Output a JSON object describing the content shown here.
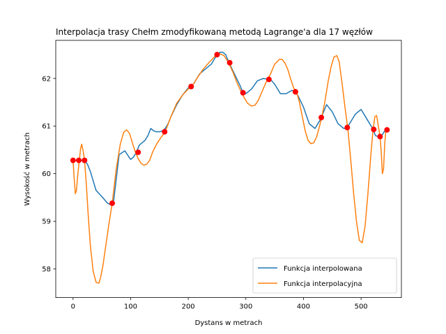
{
  "chart_data": {
    "type": "line",
    "title": "Interpolacja trasy Chełm zmodyfikowaną metodą Lagrange'a dla 17 węzłów",
    "xlabel": "Dystans w metrach",
    "ylabel": "Wysokość w metrach",
    "xlim": [
      -30,
      570
    ],
    "ylim": [
      57.4,
      62.8
    ],
    "xticks": [
      0,
      100,
      200,
      300,
      400,
      500
    ],
    "yticks": [
      58,
      59,
      60,
      61,
      62
    ],
    "grid": false,
    "legend_position": "bottom-right",
    "colors": {
      "interpolated": "#1f77b4",
      "interpolating": "#ff7f0e",
      "nodes": "#ff0000"
    },
    "series": [
      {
        "name": "Funkcja interpolowana",
        "color": "#1f77b4",
        "x": [
          0,
          10,
          20,
          25,
          30,
          35,
          40,
          50,
          60,
          65,
          70,
          80,
          90,
          100,
          105,
          110,
          115,
          120,
          125,
          130,
          135,
          140,
          145,
          150,
          155,
          160,
          165,
          170,
          180,
          190,
          200,
          205,
          210,
          220,
          230,
          240,
          250,
          255,
          260,
          265,
          270,
          280,
          290,
          295,
          300,
          310,
          320,
          330,
          340,
          345,
          350,
          360,
          370,
          380,
          385,
          390,
          400,
          410,
          420,
          430,
          440,
          450,
          460,
          470,
          475,
          480,
          490,
          500,
          510,
          520,
          525,
          530,
          535,
          540,
          545
        ],
        "y": [
          60.28,
          60.28,
          60.28,
          60.2,
          60.05,
          59.85,
          59.65,
          59.52,
          59.38,
          59.35,
          59.38,
          60.4,
          60.48,
          60.3,
          60.35,
          60.45,
          60.6,
          60.65,
          60.7,
          60.8,
          60.95,
          60.9,
          60.88,
          60.88,
          60.9,
          60.95,
          61.05,
          61.2,
          61.45,
          61.65,
          61.8,
          61.83,
          61.9,
          62.1,
          62.2,
          62.3,
          62.5,
          62.55,
          62.55,
          62.5,
          62.35,
          62.1,
          61.85,
          61.7,
          61.68,
          61.78,
          61.95,
          62.0,
          61.98,
          61.95,
          61.88,
          61.68,
          61.68,
          61.75,
          61.72,
          61.65,
          61.4,
          61.05,
          60.95,
          61.15,
          61.45,
          61.3,
          61.05,
          60.95,
          60.95,
          61.05,
          61.25,
          61.35,
          61.15,
          60.95,
          60.8,
          60.78,
          60.78,
          60.88,
          60.92
        ]
      },
      {
        "name": "Funkcja interpolacyjna",
        "color": "#ff7f0e",
        "x": [
          0,
          2,
          4,
          6,
          8,
          11,
          13,
          15,
          18,
          20,
          23,
          26,
          30,
          35,
          40,
          45,
          48,
          52,
          57,
          62,
          68,
          75,
          82,
          88,
          93,
          98,
          103,
          108,
          113,
          118,
          123,
          128,
          133,
          138,
          145,
          152,
          160,
          170,
          180,
          190,
          200,
          206,
          215,
          225,
          235,
          245,
          250,
          255,
          262,
          270,
          278,
          285,
          292,
          297,
          303,
          310,
          316,
          322,
          330,
          337,
          343,
          350,
          358,
          363,
          368,
          373,
          378,
          383,
          388,
          393,
          398,
          403,
          408,
          413,
          418,
          423,
          428,
          432,
          437,
          443,
          448,
          453,
          458,
          462,
          467,
          472,
          477,
          482,
          487,
          492,
          497,
          502,
          507,
          512,
          517,
          521,
          524,
          527,
          530,
          533,
          535,
          537,
          539,
          541,
          543
        ],
        "y": [
          60.28,
          59.9,
          59.58,
          59.65,
          59.95,
          60.28,
          60.52,
          60.62,
          60.45,
          60.28,
          59.8,
          59.2,
          58.5,
          57.95,
          57.72,
          57.7,
          57.83,
          58.08,
          58.5,
          58.92,
          59.38,
          60.1,
          60.62,
          60.87,
          60.92,
          60.85,
          60.65,
          60.46,
          60.32,
          60.22,
          60.18,
          60.2,
          60.28,
          60.45,
          60.62,
          60.75,
          60.88,
          61.2,
          61.48,
          61.65,
          61.78,
          61.83,
          62.0,
          62.18,
          62.32,
          62.45,
          62.5,
          62.52,
          62.48,
          62.33,
          62.12,
          61.9,
          61.72,
          61.6,
          61.48,
          61.42,
          61.44,
          61.55,
          61.78,
          61.97,
          62.1,
          62.3,
          62.4,
          62.4,
          62.32,
          62.18,
          61.98,
          61.8,
          61.72,
          61.5,
          61.2,
          60.9,
          60.7,
          60.63,
          60.65,
          60.78,
          61.0,
          61.2,
          61.5,
          61.95,
          62.25,
          62.45,
          62.48,
          62.35,
          61.9,
          61.4,
          60.95,
          60.3,
          59.6,
          59.0,
          58.6,
          58.55,
          58.9,
          59.6,
          60.4,
          60.95,
          61.2,
          61.22,
          61.0,
          60.78,
          60.45,
          60.0,
          60.1,
          60.6,
          60.93
        ]
      }
    ],
    "nodes": {
      "x": [
        0,
        10,
        20,
        68,
        113,
        159,
        205,
        250,
        272,
        295,
        340,
        386,
        431,
        476,
        522,
        533,
        545
      ],
      "y": [
        60.28,
        60.28,
        60.28,
        59.38,
        60.45,
        60.88,
        61.83,
        62.5,
        62.33,
        61.7,
        61.98,
        61.72,
        61.18,
        60.97,
        60.93,
        60.78,
        60.92
      ]
    }
  }
}
